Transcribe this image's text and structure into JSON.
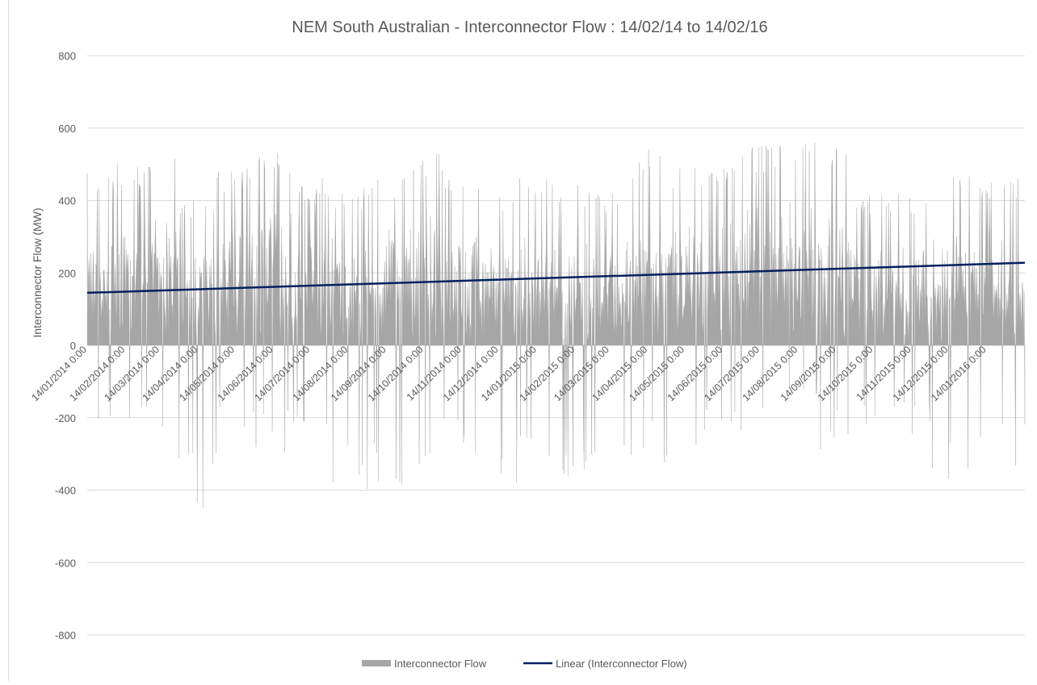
{
  "chart_data": {
    "type": "area",
    "title": "NEM South Australian - Interconnector Flow : 14/02/14 to 14/02/16",
    "xlabel": "",
    "ylabel": "Interconnector Flow (MW)",
    "ylim": [
      -800,
      800
    ],
    "yticks": [
      "800",
      "600",
      "400",
      "200",
      "0",
      "-200",
      "-400",
      "-600",
      "-800"
    ],
    "x_range": [
      "14/01/2014 0:00",
      "14/02/2016 0:00"
    ],
    "x_tick_labels": [
      "14/01/2014 0:00",
      "14/02/2014 0:00",
      "14/03/2014 0:00",
      "14/04/2014 0:00",
      "14/05/2014 0:00",
      "14/06/2014 0:00",
      "14/07/2014 0:00",
      "14/08/2014 0:00",
      "14/09/2014 0:00",
      "14/10/2014 0:00",
      "14/11/2014 0:00",
      "14/12/2014 0:00",
      "14/01/2015 0:00",
      "14/02/2015 0:00",
      "14/03/2015 0:00",
      "14/04/2015 0:00",
      "14/05/2015 0:00",
      "14/06/2015 0:00",
      "14/07/2015 0:00",
      "14/08/2015 0:00",
      "14/09/2015 0:00",
      "14/10/2015 0:00",
      "14/11/2015 0:00",
      "14/12/2015 0:00",
      "14/01/2016 0:00"
    ],
    "grid": "horizontal",
    "legend_position": "bottom",
    "series": [
      {
        "name": "Interconnector Flow",
        "type": "area",
        "color": "#a6a6a6",
        "peaks": [
          [
            "14/01/2014",
            480
          ],
          [
            "14/01/2014",
            -210
          ],
          [
            "14/02/2014",
            510
          ],
          [
            "14/02/2014",
            -250
          ],
          [
            "14/03/2014",
            540
          ],
          [
            "14/03/2014",
            -270
          ],
          [
            "14/04/2014",
            410
          ],
          [
            "14/04/2014",
            -480
          ],
          [
            "14/05/2014",
            490
          ],
          [
            "14/05/2014",
            -250
          ],
          [
            "14/06/2014",
            550
          ],
          [
            "14/06/2014",
            -300
          ],
          [
            "14/07/2014",
            470
          ],
          [
            "14/07/2014",
            -260
          ],
          [
            "14/08/2014",
            440
          ],
          [
            "14/08/2014",
            -400
          ],
          [
            "14/09/2014",
            470
          ],
          [
            "14/09/2014",
            -390
          ],
          [
            "14/10/2014",
            530
          ],
          [
            "14/10/2014",
            -420
          ],
          [
            "14/11/2014",
            490
          ],
          [
            "14/11/2014",
            -300
          ],
          [
            "14/12/2014",
            420
          ],
          [
            "14/12/2014",
            -380
          ],
          [
            "14/01/2015",
            470
          ],
          [
            "14/01/2015",
            -330
          ],
          [
            "14/02/2015",
            450
          ],
          [
            "14/02/2015",
            -380
          ],
          [
            "14/03/2015",
            430
          ],
          [
            "14/03/2015",
            -450
          ],
          [
            "14/04/2015",
            540
          ],
          [
            "14/04/2015",
            -340
          ],
          [
            "14/05/2015",
            500
          ],
          [
            "14/05/2015",
            -330
          ],
          [
            "14/06/2015",
            510
          ],
          [
            "14/06/2015",
            -290
          ],
          [
            "14/07/2015",
            560
          ],
          [
            "14/07/2015",
            -200
          ],
          [
            "14/08/2015",
            590
          ],
          [
            "14/08/2015",
            -160
          ],
          [
            "14/09/2015",
            570
          ],
          [
            "14/09/2015",
            -300
          ],
          [
            "14/10/2015",
            420
          ],
          [
            "14/10/2015",
            -230
          ],
          [
            "14/11/2015",
            420
          ],
          [
            "14/11/2015",
            -250
          ],
          [
            "14/12/2015",
            480
          ],
          [
            "14/12/2015",
            -440
          ],
          [
            "14/01/2016",
            470
          ],
          [
            "14/01/2016",
            -340
          ]
        ]
      },
      {
        "name": "Linear (Interconnector Flow)",
        "type": "line",
        "color": "#002060",
        "x": [
          "14/01/2014",
          "14/02/2016"
        ],
        "values": [
          145,
          228
        ]
      }
    ]
  }
}
